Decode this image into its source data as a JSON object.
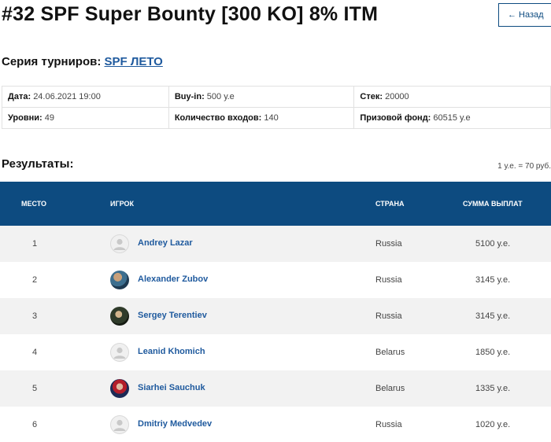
{
  "title": "#32 SPF Super Bounty [300 KO] 8% ITM",
  "back_label": "Назад",
  "series": {
    "label": "Серия турниров:",
    "link": "SPF ЛЕТО"
  },
  "info": {
    "date_label": "Дата:",
    "date_value": "24.06.2021 19:00",
    "buyin_label": "Buy-in:",
    "buyin_value": "500 у.е",
    "stack_label": "Стек:",
    "stack_value": "20000",
    "levels_label": "Уровни:",
    "levels_value": "49",
    "entries_label": "Количество входов:",
    "entries_value": "140",
    "prize_label": "Призовой фонд:",
    "prize_value": "60515 у.е"
  },
  "results": {
    "title": "Результаты:",
    "rate": "1 у.е. = 70 руб.",
    "headers": {
      "place": "МЕСТО",
      "player": "ИГРОК",
      "country": "СТРАНА",
      "payout": "СУММА ВЫПЛАТ"
    },
    "rows": [
      {
        "place": "1",
        "name": "Andrey Lazar",
        "country": "Russia",
        "payout": "5100 у.е.",
        "avatar": "placeholder-avatar-icon"
      },
      {
        "place": "2",
        "name": "Alexander Zubov",
        "country": "Russia",
        "payout": "3145 у.е.",
        "avatar": "photo"
      },
      {
        "place": "3",
        "name": "Sergey Terentiev",
        "country": "Russia",
        "payout": "3145 у.е.",
        "avatar": "photo"
      },
      {
        "place": "4",
        "name": "Leanid Khomich",
        "country": "Belarus",
        "payout": "1850 у.е.",
        "avatar": "placeholder-avatar-icon"
      },
      {
        "place": "5",
        "name": "Siarhei Sauchuk",
        "country": "Belarus",
        "payout": "1335 у.е.",
        "avatar": "photo"
      },
      {
        "place": "6",
        "name": "Dmitriy Medvedev",
        "country": "Russia",
        "payout": "1020 у.е.",
        "avatar": "placeholder-avatar-icon"
      }
    ]
  },
  "colors": {
    "header_bg": "#0d4b80",
    "link": "#1f5a9e",
    "row_alt": "#f2f2f2"
  }
}
